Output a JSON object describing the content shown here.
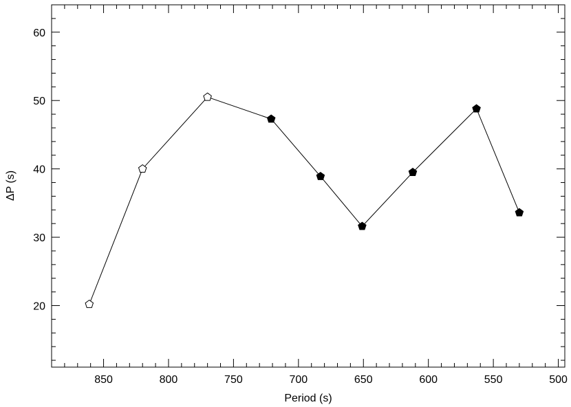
{
  "chart_data": {
    "type": "scatter",
    "title": "",
    "xlabel": "Period (s)",
    "ylabel": "ΔP (s)",
    "xlim": [
      890,
      495
    ],
    "ylim": [
      11,
      64
    ],
    "x_reversed": true,
    "x_ticks": [
      850,
      800,
      750,
      700,
      650,
      600,
      550,
      500
    ],
    "y_ticks": [
      20,
      30,
      40,
      50,
      60
    ],
    "grid": false,
    "series": [
      {
        "marker": "pentagon",
        "connected": true,
        "points": [
          {
            "x": 861,
            "y": 20.2,
            "filled": false
          },
          {
            "x": 820,
            "y": 40.0,
            "filled": false
          },
          {
            "x": 770,
            "y": 50.5,
            "filled": false
          },
          {
            "x": 721,
            "y": 47.3,
            "filled": true
          },
          {
            "x": 683,
            "y": 38.9,
            "filled": true
          },
          {
            "x": 651,
            "y": 31.6,
            "filled": true
          },
          {
            "x": 612,
            "y": 39.5,
            "filled": true
          },
          {
            "x": 563,
            "y": 48.8,
            "filled": true
          },
          {
            "x": 530,
            "y": 33.6,
            "filled": true
          }
        ]
      }
    ]
  }
}
